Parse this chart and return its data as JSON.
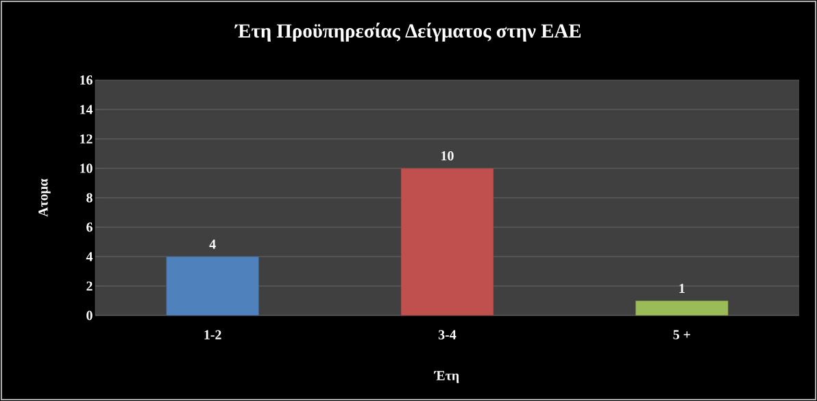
{
  "chart_data": {
    "type": "bar",
    "title": "Έτη Προϋπηρεσίας Δείγματος στην ΕΑΕ",
    "xlabel": "Έτη",
    "ylabel": "Ατομα",
    "categories": [
      "1-2",
      "3-4",
      "5 +"
    ],
    "values": [
      4,
      10,
      1
    ],
    "colors": [
      "#4f81bd",
      "#c0504d",
      "#9bbb59"
    ],
    "ylim": [
      0,
      16
    ],
    "yticks": [
      0,
      2,
      4,
      6,
      8,
      10,
      12,
      14,
      16
    ],
    "grid": "y",
    "data_labels": true
  }
}
